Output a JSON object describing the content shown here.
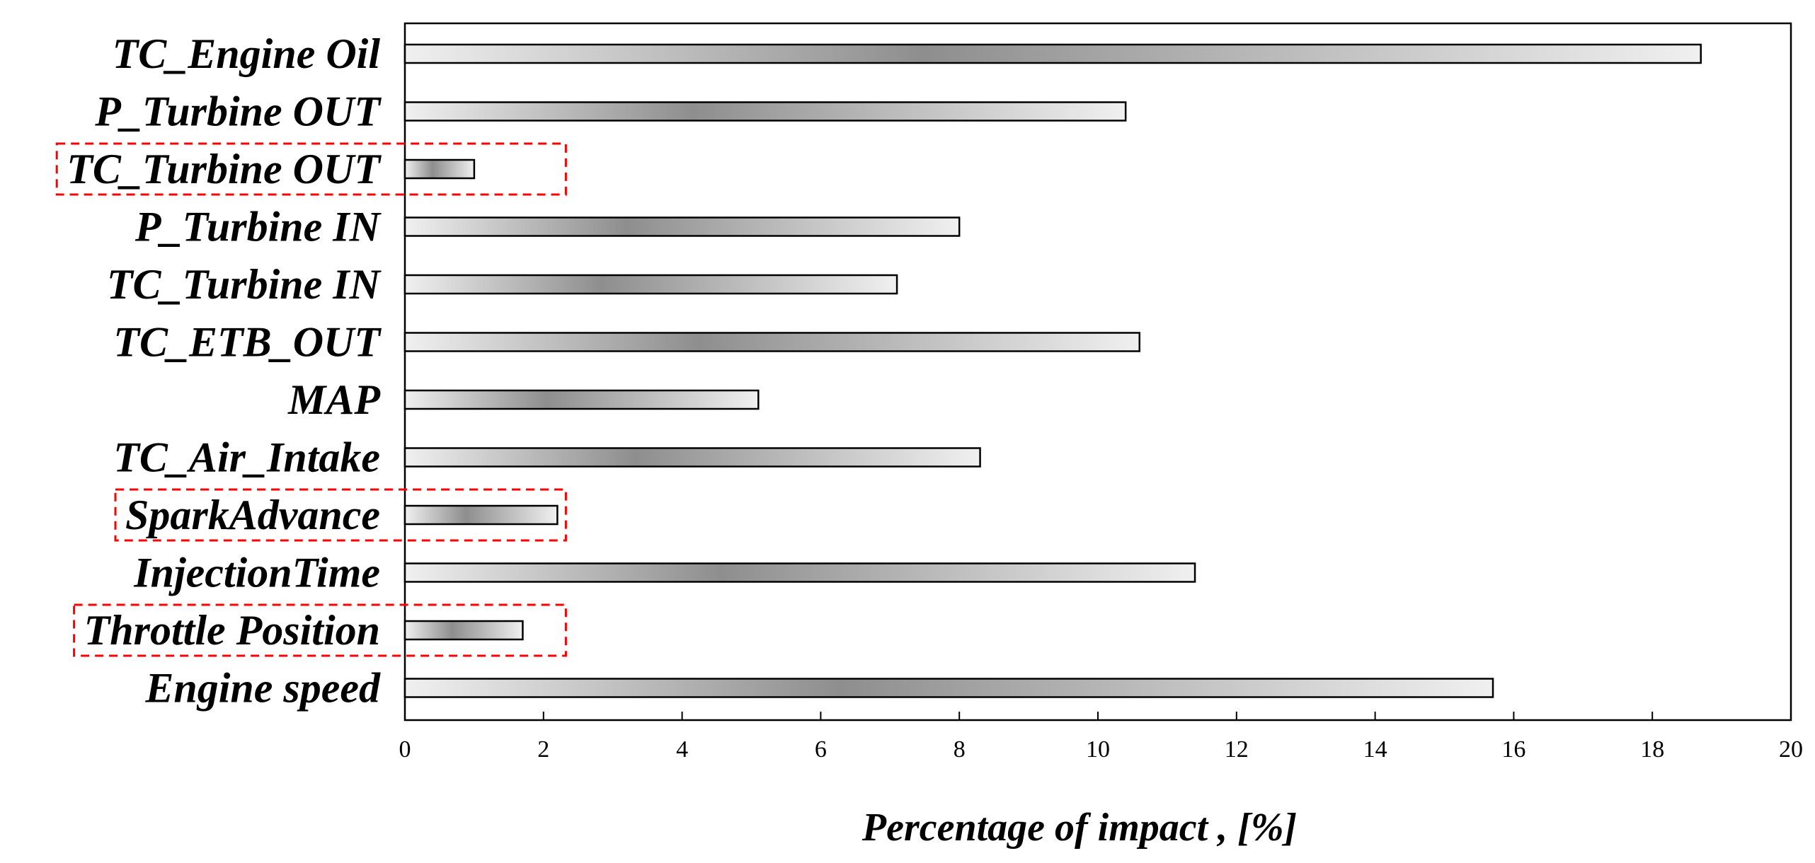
{
  "chart_data": {
    "type": "bar",
    "orientation": "horizontal",
    "title": "",
    "xlabel": "Percentage of impact , [%]",
    "ylabel": "",
    "xlim": [
      0,
      20
    ],
    "xticks": [
      0,
      2,
      4,
      6,
      8,
      10,
      12,
      14,
      16,
      18,
      20
    ],
    "grid": false,
    "categories": [
      "TC_Engine Oil",
      "P_Turbine OUT",
      "TC_Turbine OUT",
      "P_Turbine IN",
      "TC_Turbine IN",
      "TC_ETB_OUT",
      "MAP",
      "TC_Air_Intake",
      "SparkAdvance",
      "InjectionTime",
      "Throttle Position",
      "Engine speed"
    ],
    "values": [
      18.7,
      10.4,
      1.0,
      8.0,
      7.1,
      10.6,
      5.1,
      8.3,
      2.2,
      11.4,
      1.7,
      15.7
    ],
    "highlighted": [
      "TC_Turbine OUT",
      "SparkAdvance",
      "Throttle Position"
    ],
    "colors": {
      "bar_edge": "#000000",
      "bar_fill_light": "#e8e8e8",
      "bar_fill_dark": "#8e8e8e",
      "highlight_box": "#ff0000"
    }
  }
}
